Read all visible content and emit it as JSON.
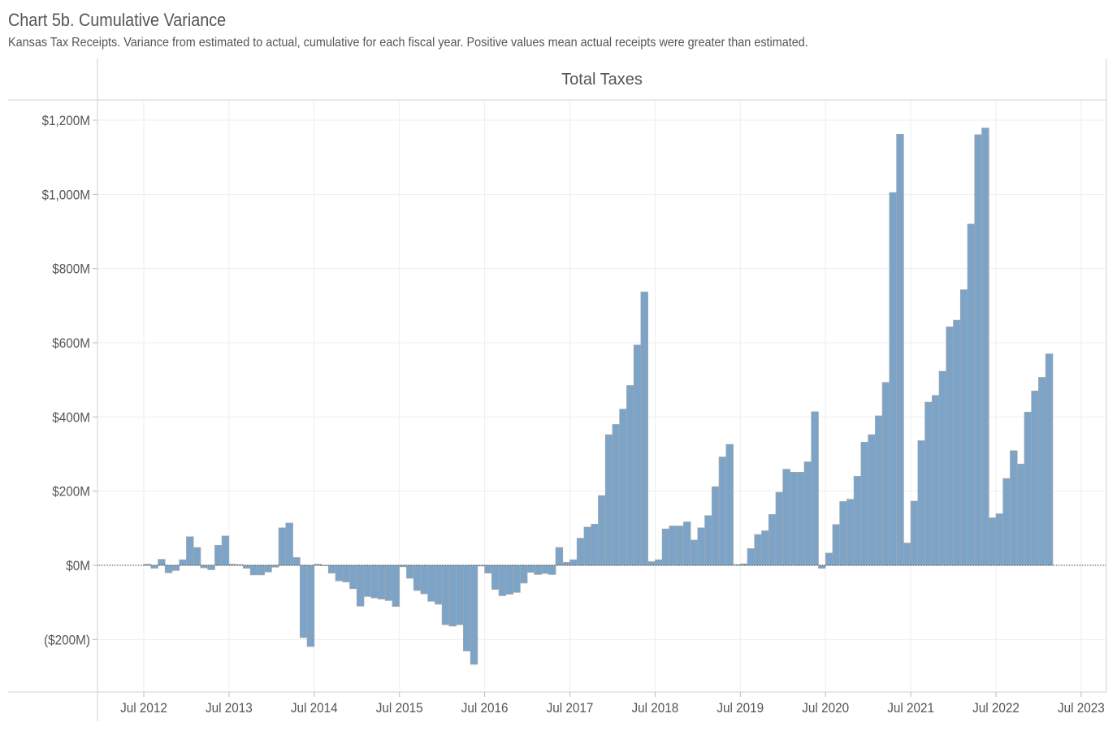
{
  "title": "Chart 5b. Cumulative Variance",
  "subtitle": "Kansas Tax Receipts. Variance from estimated to actual, cumulative for each fiscal year.  Positive values mean actual receipts were greater than estimated.",
  "chart_data": {
    "type": "bar",
    "panel_title": "Total Taxes",
    "x_unit": "month",
    "x_start": "2012-07",
    "x_ticks": [
      "Jul 2012",
      "Jul 2013",
      "Jul 2014",
      "Jul 2015",
      "Jul 2016",
      "Jul 2017",
      "Jul 2018",
      "Jul 2019",
      "Jul 2020",
      "Jul 2021",
      "Jul 2022",
      "Jul 2023"
    ],
    "y_ticks": [
      {
        "value": 1200,
        "label": "$1,200M"
      },
      {
        "value": 1000,
        "label": "$1,000M"
      },
      {
        "value": 800,
        "label": "$800M"
      },
      {
        "value": 600,
        "label": "$600M"
      },
      {
        "value": 400,
        "label": "$400M"
      },
      {
        "value": 200,
        "label": "$200M"
      },
      {
        "value": 0,
        "label": "$0M"
      },
      {
        "value": -200,
        "label": "($200M)"
      }
    ],
    "ylim": [
      -340,
      1250
    ],
    "grid": true,
    "bar_color": "#7ca4c8",
    "bar_edge_color": "#a6a6a6",
    "values": [
      3,
      -8,
      16,
      -20,
      -14,
      15,
      77,
      48,
      -7,
      -12,
      54,
      79,
      3,
      2,
      -8,
      -26,
      -26,
      -18,
      -5,
      101,
      114,
      21,
      -195,
      -219,
      3,
      -1,
      -21,
      -42,
      -45,
      -63,
      -110,
      -84,
      -88,
      -91,
      -95,
      -111,
      -4,
      -35,
      -68,
      -77,
      -97,
      -105,
      -160,
      -164,
      -160,
      -231,
      -267,
      -2,
      -21,
      -65,
      -82,
      -78,
      -73,
      -48,
      -19,
      -25,
      -22,
      -25,
      48,
      8,
      15,
      73,
      103,
      111,
      188,
      352,
      380,
      421,
      485,
      594,
      737,
      10,
      15,
      98,
      106,
      106,
      117,
      68,
      101,
      134,
      212,
      292,
      326,
      2,
      4,
      45,
      83,
      93,
      137,
      197,
      259,
      251,
      251,
      279,
      414,
      -8,
      33,
      110,
      172,
      178,
      240,
      332,
      352,
      403,
      493,
      1005,
      1162,
      60,
      173,
      336,
      440,
      458,
      523,
      643,
      661,
      743,
      920,
      1161,
      1179,
      128,
      139,
      234,
      309,
      273,
      413,
      470,
      507,
      570
    ]
  }
}
